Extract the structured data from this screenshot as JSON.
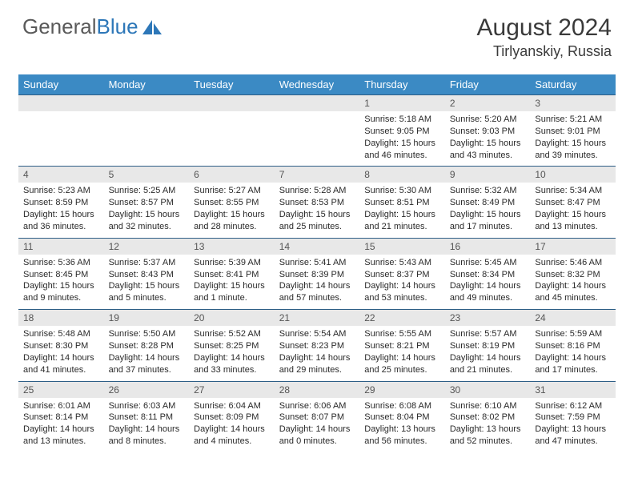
{
  "brand": {
    "part1": "General",
    "part2": "Blue"
  },
  "title": "August 2024",
  "location": "Tirlyanskiy, Russia",
  "header_bg": "#3b8ac4",
  "days": [
    "Sunday",
    "Monday",
    "Tuesday",
    "Wednesday",
    "Thursday",
    "Friday",
    "Saturday"
  ],
  "weeks": [
    [
      null,
      null,
      null,
      null,
      {
        "n": "1",
        "sr": "5:18 AM",
        "ss": "9:05 PM",
        "dl": "15 hours and 46 minutes."
      },
      {
        "n": "2",
        "sr": "5:20 AM",
        "ss": "9:03 PM",
        "dl": "15 hours and 43 minutes."
      },
      {
        "n": "3",
        "sr": "5:21 AM",
        "ss": "9:01 PM",
        "dl": "15 hours and 39 minutes."
      }
    ],
    [
      {
        "n": "4",
        "sr": "5:23 AM",
        "ss": "8:59 PM",
        "dl": "15 hours and 36 minutes."
      },
      {
        "n": "5",
        "sr": "5:25 AM",
        "ss": "8:57 PM",
        "dl": "15 hours and 32 minutes."
      },
      {
        "n": "6",
        "sr": "5:27 AM",
        "ss": "8:55 PM",
        "dl": "15 hours and 28 minutes."
      },
      {
        "n": "7",
        "sr": "5:28 AM",
        "ss": "8:53 PM",
        "dl": "15 hours and 25 minutes."
      },
      {
        "n": "8",
        "sr": "5:30 AM",
        "ss": "8:51 PM",
        "dl": "15 hours and 21 minutes."
      },
      {
        "n": "9",
        "sr": "5:32 AM",
        "ss": "8:49 PM",
        "dl": "15 hours and 17 minutes."
      },
      {
        "n": "10",
        "sr": "5:34 AM",
        "ss": "8:47 PM",
        "dl": "15 hours and 13 minutes."
      }
    ],
    [
      {
        "n": "11",
        "sr": "5:36 AM",
        "ss": "8:45 PM",
        "dl": "15 hours and 9 minutes."
      },
      {
        "n": "12",
        "sr": "5:37 AM",
        "ss": "8:43 PM",
        "dl": "15 hours and 5 minutes."
      },
      {
        "n": "13",
        "sr": "5:39 AM",
        "ss": "8:41 PM",
        "dl": "15 hours and 1 minute."
      },
      {
        "n": "14",
        "sr": "5:41 AM",
        "ss": "8:39 PM",
        "dl": "14 hours and 57 minutes."
      },
      {
        "n": "15",
        "sr": "5:43 AM",
        "ss": "8:37 PM",
        "dl": "14 hours and 53 minutes."
      },
      {
        "n": "16",
        "sr": "5:45 AM",
        "ss": "8:34 PM",
        "dl": "14 hours and 49 minutes."
      },
      {
        "n": "17",
        "sr": "5:46 AM",
        "ss": "8:32 PM",
        "dl": "14 hours and 45 minutes."
      }
    ],
    [
      {
        "n": "18",
        "sr": "5:48 AM",
        "ss": "8:30 PM",
        "dl": "14 hours and 41 minutes."
      },
      {
        "n": "19",
        "sr": "5:50 AM",
        "ss": "8:28 PM",
        "dl": "14 hours and 37 minutes."
      },
      {
        "n": "20",
        "sr": "5:52 AM",
        "ss": "8:25 PM",
        "dl": "14 hours and 33 minutes."
      },
      {
        "n": "21",
        "sr": "5:54 AM",
        "ss": "8:23 PM",
        "dl": "14 hours and 29 minutes."
      },
      {
        "n": "22",
        "sr": "5:55 AM",
        "ss": "8:21 PM",
        "dl": "14 hours and 25 minutes."
      },
      {
        "n": "23",
        "sr": "5:57 AM",
        "ss": "8:19 PM",
        "dl": "14 hours and 21 minutes."
      },
      {
        "n": "24",
        "sr": "5:59 AM",
        "ss": "8:16 PM",
        "dl": "14 hours and 17 minutes."
      }
    ],
    [
      {
        "n": "25",
        "sr": "6:01 AM",
        "ss": "8:14 PM",
        "dl": "14 hours and 13 minutes."
      },
      {
        "n": "26",
        "sr": "6:03 AM",
        "ss": "8:11 PM",
        "dl": "14 hours and 8 minutes."
      },
      {
        "n": "27",
        "sr": "6:04 AM",
        "ss": "8:09 PM",
        "dl": "14 hours and 4 minutes."
      },
      {
        "n": "28",
        "sr": "6:06 AM",
        "ss": "8:07 PM",
        "dl": "14 hours and 0 minutes."
      },
      {
        "n": "29",
        "sr": "6:08 AM",
        "ss": "8:04 PM",
        "dl": "13 hours and 56 minutes."
      },
      {
        "n": "30",
        "sr": "6:10 AM",
        "ss": "8:02 PM",
        "dl": "13 hours and 52 minutes."
      },
      {
        "n": "31",
        "sr": "6:12 AM",
        "ss": "7:59 PM",
        "dl": "13 hours and 47 minutes."
      }
    ]
  ],
  "labels": {
    "sunrise": "Sunrise:",
    "sunset": "Sunset:",
    "daylight": "Daylight:"
  }
}
